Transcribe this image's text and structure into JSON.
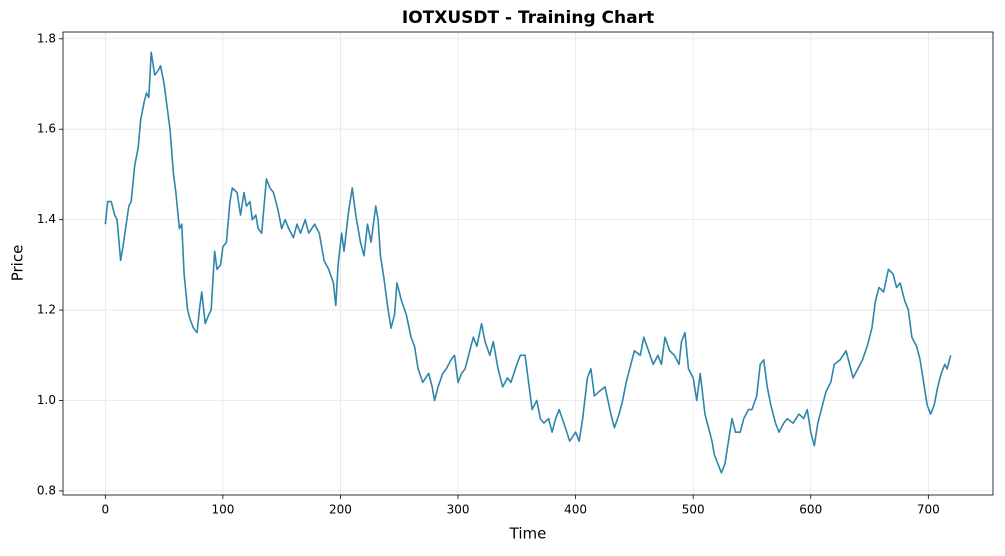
{
  "chart_data": {
    "type": "line",
    "title": "IOTXUSDT - Training Chart",
    "x_label": "Time",
    "y_label": "Price",
    "x": [
      0,
      2,
      5,
      8,
      10,
      13,
      15,
      20,
      22,
      25,
      28,
      30,
      33,
      35,
      37,
      39,
      42,
      45,
      47,
      50,
      52,
      55,
      58,
      60,
      63,
      65,
      67,
      70,
      72,
      75,
      78,
      80,
      82,
      85,
      88,
      90,
      93,
      95,
      98,
      100,
      103,
      106,
      108,
      112,
      115,
      118,
      120,
      123,
      125,
      128,
      130,
      133,
      137,
      140,
      143,
      147,
      150,
      153,
      156,
      160,
      163,
      166,
      170,
      173,
      178,
      182,
      186,
      190,
      194,
      196,
      198,
      201,
      203,
      207,
      210,
      213,
      217,
      220,
      223,
      226,
      230,
      232,
      234,
      237,
      240,
      243,
      246,
      248,
      252,
      256,
      260,
      263,
      266,
      270,
      275,
      278,
      280,
      283,
      287,
      290,
      294,
      297,
      300,
      303,
      306,
      310,
      313,
      316,
      320,
      323,
      327,
      330,
      334,
      338,
      342,
      345,
      350,
      353,
      357,
      360,
      363,
      367,
      370,
      373,
      377,
      380,
      383,
      386,
      390,
      395,
      400,
      403,
      406,
      410,
      413,
      416,
      420,
      425,
      430,
      433,
      437,
      440,
      443,
      447,
      450,
      455,
      458,
      462,
      466,
      470,
      473,
      476,
      480,
      484,
      488,
      490,
      493,
      496,
      500,
      503,
      506,
      510,
      513,
      516,
      518,
      521,
      524,
      527,
      530,
      533,
      536,
      540,
      543,
      547,
      550,
      554,
      557,
      560,
      563,
      566,
      570,
      573,
      577,
      580,
      585,
      590,
      594,
      597,
      600,
      603,
      606,
      610,
      613,
      617,
      620,
      625,
      630,
      633,
      636,
      640,
      644,
      648,
      652,
      655,
      658,
      662,
      666,
      670,
      673,
      676,
      680,
      683,
      686,
      690,
      693,
      696,
      699,
      702,
      705,
      708,
      711,
      714,
      716,
      719
    ],
    "series": [
      {
        "name": "Price",
        "color": "#2e86ab",
        "values": [
          1.39,
          1.44,
          1.44,
          1.41,
          1.4,
          1.31,
          1.34,
          1.43,
          1.44,
          1.52,
          1.56,
          1.62,
          1.66,
          1.68,
          1.67,
          1.77,
          1.72,
          1.73,
          1.74,
          1.7,
          1.66,
          1.6,
          1.5,
          1.46,
          1.38,
          1.39,
          1.28,
          1.2,
          1.18,
          1.16,
          1.15,
          1.2,
          1.24,
          1.17,
          1.19,
          1.2,
          1.33,
          1.29,
          1.3,
          1.34,
          1.35,
          1.44,
          1.47,
          1.46,
          1.41,
          1.46,
          1.43,
          1.44,
          1.4,
          1.41,
          1.38,
          1.37,
          1.49,
          1.47,
          1.46,
          1.42,
          1.38,
          1.4,
          1.38,
          1.36,
          1.39,
          1.37,
          1.4,
          1.37,
          1.39,
          1.37,
          1.31,
          1.29,
          1.26,
          1.21,
          1.3,
          1.37,
          1.33,
          1.42,
          1.47,
          1.41,
          1.35,
          1.32,
          1.39,
          1.35,
          1.43,
          1.4,
          1.32,
          1.27,
          1.21,
          1.16,
          1.19,
          1.26,
          1.22,
          1.19,
          1.14,
          1.12,
          1.07,
          1.04,
          1.06,
          1.03,
          1.0,
          1.03,
          1.06,
          1.07,
          1.09,
          1.1,
          1.04,
          1.06,
          1.07,
          1.11,
          1.14,
          1.12,
          1.17,
          1.13,
          1.1,
          1.13,
          1.07,
          1.03,
          1.05,
          1.04,
          1.08,
          1.1,
          1.1,
          1.04,
          0.98,
          1.0,
          0.96,
          0.95,
          0.96,
          0.93,
          0.96,
          0.98,
          0.95,
          0.91,
          0.93,
          0.91,
          0.96,
          1.05,
          1.07,
          1.01,
          1.02,
          1.03,
          0.97,
          0.94,
          0.97,
          1.0,
          1.04,
          1.08,
          1.11,
          1.1,
          1.14,
          1.11,
          1.08,
          1.1,
          1.08,
          1.14,
          1.11,
          1.1,
          1.08,
          1.13,
          1.15,
          1.07,
          1.05,
          1.0,
          1.06,
          0.97,
          0.94,
          0.91,
          0.88,
          0.86,
          0.84,
          0.86,
          0.91,
          0.96,
          0.93,
          0.93,
          0.96,
          0.98,
          0.98,
          1.01,
          1.08,
          1.09,
          1.03,
          0.99,
          0.95,
          0.93,
          0.95,
          0.96,
          0.95,
          0.97,
          0.96,
          0.98,
          0.93,
          0.9,
          0.95,
          0.99,
          1.02,
          1.04,
          1.08,
          1.09,
          1.11,
          1.08,
          1.05,
          1.07,
          1.09,
          1.12,
          1.16,
          1.22,
          1.25,
          1.24,
          1.29,
          1.28,
          1.25,
          1.26,
          1.22,
          1.2,
          1.14,
          1.12,
          1.09,
          1.04,
          0.99,
          0.97,
          0.99,
          1.03,
          1.06,
          1.08,
          1.07,
          1.1
        ]
      }
    ],
    "xlim": [
      -36,
      755
    ],
    "ylim": [
      0.791,
      1.815
    ],
    "xticks": [
      0,
      100,
      200,
      300,
      400,
      500,
      600,
      700
    ],
    "yticks": [
      0.8,
      {
        "value": 1,
        "label": "1.0"
      },
      1.2,
      1.4,
      1.6,
      1.8
    ],
    "grid": true
  }
}
